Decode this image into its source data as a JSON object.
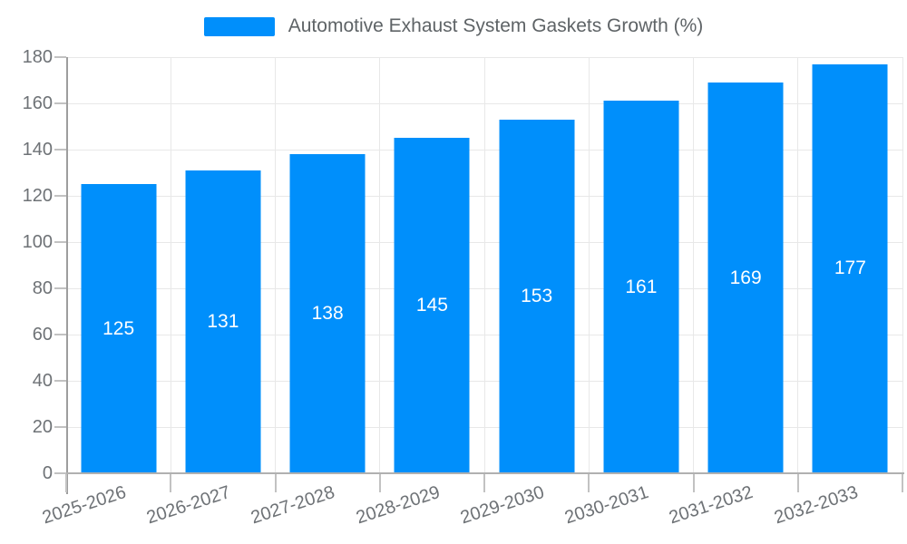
{
  "legend": {
    "label": "Automotive Exhaust System Gaskets Growth (%)"
  },
  "chart_data": {
    "type": "bar",
    "title": "Automotive Exhaust System Gaskets Growth (%)",
    "categories": [
      "2025-2026",
      "2026-2027",
      "2027-2028",
      "2028-2029",
      "2029-2030",
      "2030-2031",
      "2031-2032",
      "2032-2033"
    ],
    "values": [
      125,
      131,
      138,
      145,
      153,
      161,
      169,
      177
    ],
    "xlabel": "",
    "ylabel": "",
    "ylim": [
      0,
      180
    ],
    "ytick_step": 20,
    "grid": "on",
    "legend_position": "top",
    "x_label_rotation_deg": -18,
    "colors": {
      "bar": "#008FFB",
      "bar_value_text": "#FFFFFF",
      "axis_text": "#6E7276",
      "legend_text": "#5E6366",
      "grid_line": "#E8E8E8",
      "y_axis_line": "#9E9E9E",
      "x_axis_line": "#B0B0B0",
      "tick": "#C2C2C2",
      "background": "#FFFFFF"
    }
  }
}
